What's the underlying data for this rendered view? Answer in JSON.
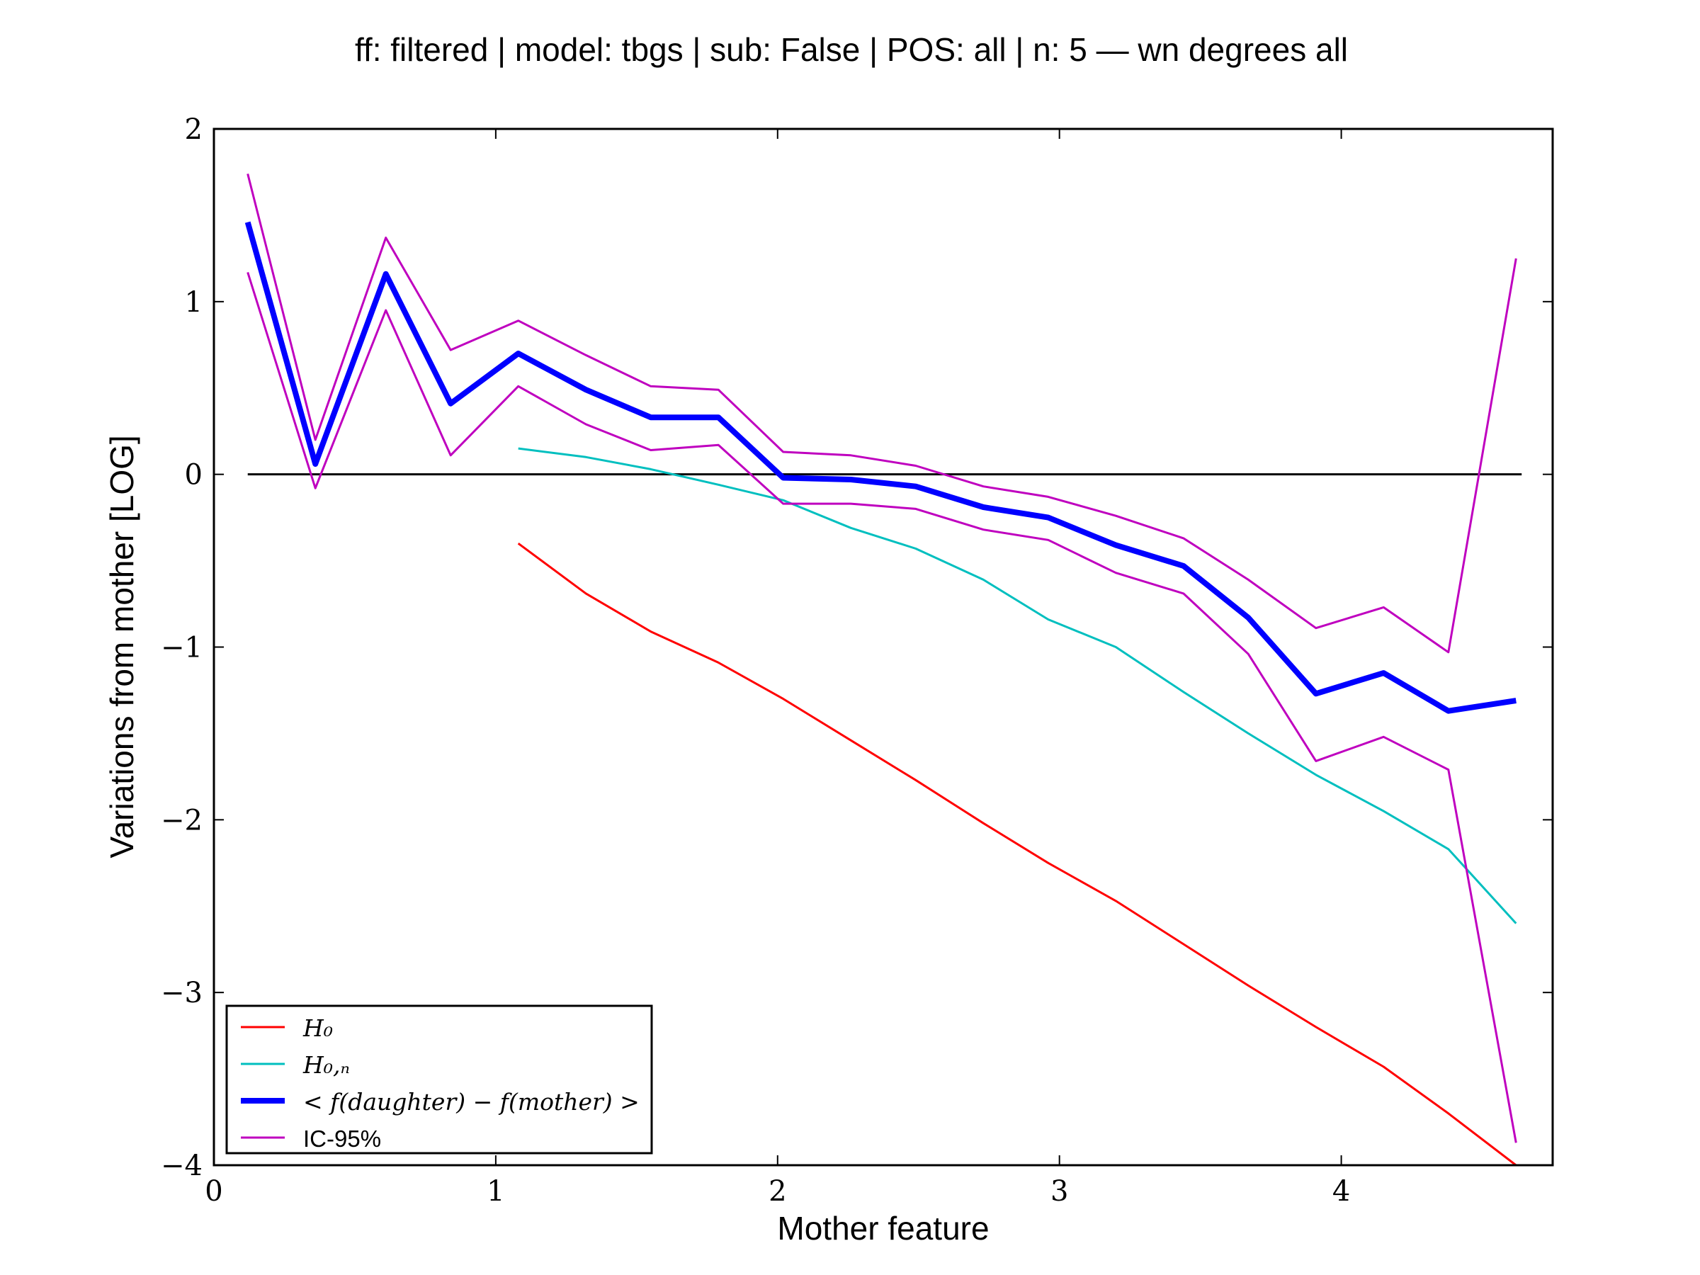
{
  "chart_data": {
    "type": "line",
    "title": "ff: filtered | model: tbgs | sub: False | POS: all | n: 5 — wn degrees all",
    "xlabel": "Mother feature",
    "ylabel": "Variations from mother [LOG]",
    "xlim": [
      0,
      4.75
    ],
    "ylim": [
      -4,
      2
    ],
    "xticks": [
      0,
      1,
      2,
      3,
      4
    ],
    "yticks": [
      -4,
      -3,
      -2,
      -1,
      0,
      1,
      2
    ],
    "xtick_labels": [
      "0",
      "1",
      "2",
      "3",
      "4"
    ],
    "ytick_labels": [
      "−4",
      "−3",
      "−2",
      "−1",
      "0",
      "1",
      "2"
    ],
    "grid": false,
    "legend_position": "lower-left",
    "reference_line": {
      "y": 0,
      "x_range": [
        0.12,
        4.64
      ],
      "color": "#000000"
    },
    "series": [
      {
        "name": "H₀",
        "legend_label": "H_0",
        "color": "#ff0000",
        "width": "normal",
        "x": [
          1.08,
          1.32,
          1.55,
          1.79,
          2.02,
          2.26,
          2.49,
          2.73,
          2.96,
          3.2,
          3.44,
          3.67,
          3.91,
          4.15,
          4.38,
          4.62
        ],
        "y": [
          -0.4,
          -0.69,
          -0.91,
          -1.09,
          -1.3,
          -1.54,
          -1.77,
          -2.02,
          -2.25,
          -2.47,
          -2.72,
          -2.96,
          -3.2,
          -3.43,
          -3.7,
          -4.0
        ]
      },
      {
        "name": "H₀,ₙ",
        "legend_label": "H_{0,n}",
        "color": "#00bfbf",
        "width": "normal",
        "x": [
          1.08,
          1.32,
          1.55,
          1.79,
          2.02,
          2.26,
          2.49,
          2.73,
          2.96,
          3.2,
          3.44,
          3.67,
          3.91,
          4.15,
          4.38,
          4.62
        ],
        "y": [
          0.15,
          0.1,
          0.03,
          -0.06,
          -0.15,
          -0.31,
          -0.43,
          -0.61,
          -0.84,
          -1.0,
          -1.26,
          -1.5,
          -1.74,
          -1.95,
          -2.17,
          -2.6
        ]
      },
      {
        "name": "< f(daughter) − f(mother) >",
        "legend_label": "< f(daughter) − f(mother) >",
        "color": "#0000ff",
        "width": "thick",
        "x": [
          0.12,
          0.36,
          0.61,
          0.84,
          1.08,
          1.32,
          1.55,
          1.79,
          2.02,
          2.26,
          2.49,
          2.73,
          2.96,
          3.2,
          3.44,
          3.67,
          3.91,
          4.15,
          4.38,
          4.62
        ],
        "y": [
          1.46,
          0.06,
          1.16,
          0.41,
          0.7,
          0.49,
          0.33,
          0.33,
          -0.02,
          -0.03,
          -0.07,
          -0.19,
          -0.25,
          -0.41,
          -0.53,
          -0.83,
          -1.27,
          -1.15,
          -1.37,
          -1.31
        ]
      },
      {
        "name": "IC-95%",
        "legend_label": "IC-95%",
        "color": "#bf00bf",
        "width": "normal",
        "x": [
          0.12,
          0.36,
          0.61,
          0.84,
          1.08,
          1.32,
          1.55,
          1.79,
          2.02,
          2.26,
          2.49,
          2.73,
          2.96,
          3.2,
          3.44,
          3.67,
          3.91,
          4.15,
          4.38,
          4.62
        ],
        "y": [
          1.74,
          0.2,
          1.37,
          0.72,
          0.89,
          0.69,
          0.51,
          0.49,
          0.13,
          0.11,
          0.05,
          -0.07,
          -0.13,
          -0.24,
          -0.37,
          -0.61,
          -0.89,
          -0.77,
          -1.03,
          1.25
        ]
      },
      {
        "name": "",
        "legend_label": "",
        "color": "#bf00bf",
        "width": "normal",
        "x": [
          0.12,
          0.36,
          0.61,
          0.84,
          1.08,
          1.32,
          1.55,
          1.79,
          2.02,
          2.26,
          2.49,
          2.73,
          2.96,
          3.2,
          3.44,
          3.67,
          3.91,
          4.15,
          4.38,
          4.62
        ],
        "y": [
          1.17,
          -0.08,
          0.95,
          0.11,
          0.51,
          0.29,
          0.14,
          0.17,
          -0.17,
          -0.17,
          -0.2,
          -0.32,
          -0.38,
          -0.57,
          -0.69,
          -1.04,
          -1.66,
          -1.52,
          -1.71,
          -3.87
        ]
      }
    ]
  }
}
